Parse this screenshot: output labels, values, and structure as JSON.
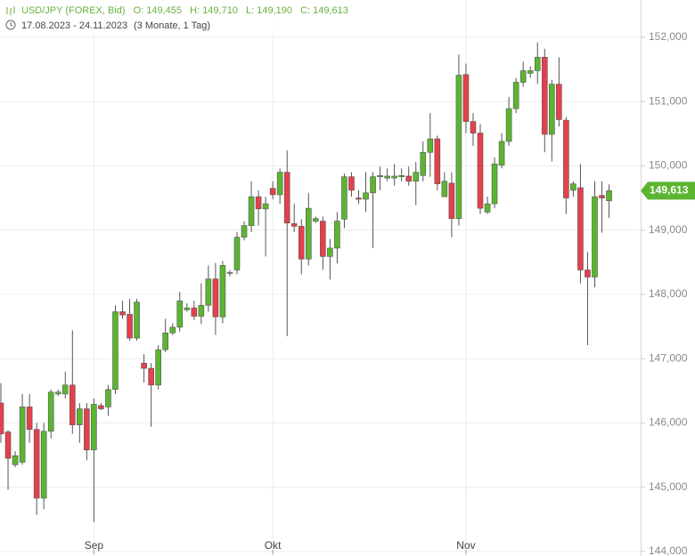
{
  "chart_data": {
    "type": "candlestick",
    "symbol": "USD/JPY (FOREX, Bid)",
    "ohlc_labels": [
      "O: 149,455",
      "H: 149,710",
      "L: 149,190",
      "C: 149,613"
    ],
    "date_range": "17.08.2023 - 24.11.2023",
    "period": "(3 Monate, 1 Tag)",
    "header_color": "#6ab13e",
    "up_color": "#5cb531",
    "down_color": "#e5404b",
    "categories": [
      null,
      null,
      null,
      null,
      null,
      null,
      null,
      null,
      null,
      null,
      null,
      null,
      null,
      "Sep",
      null,
      null,
      null,
      null,
      null,
      null,
      null,
      null,
      null,
      null,
      null,
      null,
      null,
      null,
      null,
      null,
      null,
      null,
      null,
      null,
      null,
      null,
      null,
      null,
      "Okt",
      null,
      null,
      null,
      null,
      null,
      null,
      null,
      null,
      null,
      null,
      null,
      null,
      null,
      null,
      null,
      null,
      null,
      null,
      null,
      null,
      null,
      null,
      null,
      null,
      null,
      null,
      "Nov",
      null,
      null,
      null,
      null,
      null,
      null,
      null,
      null,
      null,
      null,
      null,
      null,
      null,
      null,
      null,
      null,
      null,
      null,
      null,
      null
    ],
    "open": [
      146.31,
      145.86,
      145.35,
      145.39,
      146.25,
      145.9,
      144.83,
      145.87,
      146.45,
      146.45,
      146.59,
      145.97,
      146.22,
      145.58,
      146.27,
      146.25,
      146.52,
      147.73,
      147.69,
      147.32,
      146.93,
      146.85,
      146.59,
      147.14,
      147.4,
      147.49,
      147.76,
      147.79,
      147.66,
      147.83,
      148.24,
      147.65,
      148.33,
      148.38,
      148.89,
      149.07,
      149.52,
      149.33,
      149.65,
      149.55,
      149.9,
      149.1,
      149.06,
      148.55,
      149.14,
      149.14,
      148.59,
      148.72,
      149.17,
      149.83,
      149.5,
      149.48,
      149.58,
      149.83,
      149.81,
      149.81,
      149.83,
      149.84,
      149.76,
      149.85,
      150.21,
      150.42,
      149.52,
      149.73,
      149.18,
      151.42,
      150.69,
      150.51,
      149.28,
      149.41,
      150.01,
      150.38,
      150.89,
      151.3,
      151.44,
      151.48,
      151.69,
      150.49,
      151.27,
      150.71,
      149.62,
      149.66,
      148.38,
      148.27,
      149.54,
      149.455
    ],
    "high": [
      146.62,
      145.89,
      145.56,
      146.45,
      146.45,
      146.0,
      146.0,
      146.52,
      146.52,
      146.8,
      147.44,
      146.31,
      146.31,
      146.38,
      146.31,
      146.59,
      147.83,
      147.9,
      147.93,
      147.93,
      147.07,
      146.93,
      147.21,
      147.62,
      147.55,
      148.04,
      147.86,
      147.9,
      148.17,
      148.45,
      148.49,
      148.52,
      148.38,
      148.97,
      149.14,
      149.76,
      149.62,
      149.52,
      149.76,
      149.96,
      150.24,
      149.41,
      149.17,
      149.58,
      149.21,
      149.21,
      148.86,
      149.28,
      149.88,
      149.9,
      149.62,
      149.9,
      149.9,
      149.99,
      149.96,
      150.03,
      149.96,
      149.99,
      150.06,
      150.38,
      150.82,
      150.47,
      149.9,
      149.9,
      151.73,
      151.59,
      150.82,
      150.65,
      149.52,
      150.13,
      150.51,
      151.07,
      151.37,
      151.62,
      151.55,
      151.92,
      151.82,
      151.34,
      151.69,
      150.76,
      149.76,
      150.03,
      148.66,
      149.76,
      149.76,
      149.71
    ],
    "low": [
      145.69,
      144.96,
      145.31,
      145.35,
      145.69,
      144.57,
      144.66,
      145.76,
      146.42,
      146.38,
      145.83,
      145.69,
      145.42,
      144.46,
      146.2,
      146.11,
      146.45,
      147.62,
      147.28,
      147.28,
      146.63,
      145.94,
      146.52,
      147.1,
      147.37,
      147.42,
      147.73,
      147.6,
      147.54,
      147.73,
      147.37,
      147.55,
      148.28,
      148.31,
      148.84,
      148.97,
      149.07,
      148.59,
      149.48,
      149.41,
      147.35,
      148.97,
      148.31,
      148.45,
      149.11,
      148.38,
      148.23,
      148.48,
      149.03,
      149.52,
      149.41,
      149.28,
      148.72,
      149.62,
      149.76,
      149.69,
      149.76,
      149.69,
      149.39,
      149.76,
      149.83,
      149.62,
      149.52,
      148.89,
      149.07,
      150.51,
      150.31,
      149.25,
      149.25,
      149.34,
      149.96,
      150.31,
      150.82,
      151.23,
      151.37,
      151.27,
      150.21,
      150.07,
      150.61,
      149.25,
      149.52,
      148.17,
      147.21,
      148.11,
      148.96,
      149.19
    ],
    "close": [
      145.83,
      145.45,
      145.49,
      146.25,
      145.9,
      144.83,
      145.87,
      146.48,
      146.48,
      146.59,
      145.97,
      146.22,
      145.58,
      146.29,
      146.22,
      146.52,
      147.73,
      147.68,
      147.32,
      147.88,
      146.85,
      146.59,
      147.14,
      147.4,
      147.49,
      147.9,
      147.79,
      147.66,
      147.83,
      148.24,
      147.65,
      148.45,
      148.34,
      148.89,
      149.07,
      149.52,
      149.33,
      149.41,
      149.55,
      149.9,
      149.11,
      149.06,
      148.55,
      149.34,
      149.18,
      148.59,
      148.72,
      149.14,
      149.83,
      149.62,
      149.48,
      149.58,
      149.83,
      149.85,
      149.84,
      149.84,
      149.85,
      149.76,
      149.9,
      150.21,
      150.42,
      149.72,
      149.76,
      149.18,
      151.41,
      150.69,
      150.51,
      149.34,
      149.41,
      150.03,
      150.38,
      150.89,
      151.3,
      151.48,
      151.48,
      151.69,
      150.49,
      151.27,
      150.72,
      149.5,
      149.72,
      148.38,
      148.27,
      149.52,
      149.5,
      149.613
    ],
    "last_price": {
      "value": 149.613,
      "label": "149,613"
    },
    "ylim": [
      143.93,
      152.58
    ],
    "yticks": [
      {
        "value": 144,
        "label": "144,000"
      },
      {
        "value": 145,
        "label": "145,000"
      },
      {
        "value": 146,
        "label": "146,000"
      },
      {
        "value": 147,
        "label": "147,000"
      },
      {
        "value": 148,
        "label": "148,000"
      },
      {
        "value": 149,
        "label": "149,000"
      },
      {
        "value": 150,
        "label": "150,000"
      },
      {
        "value": 151,
        "label": "151,000"
      },
      {
        "value": 152,
        "label": "152,000"
      }
    ],
    "grid": true
  }
}
